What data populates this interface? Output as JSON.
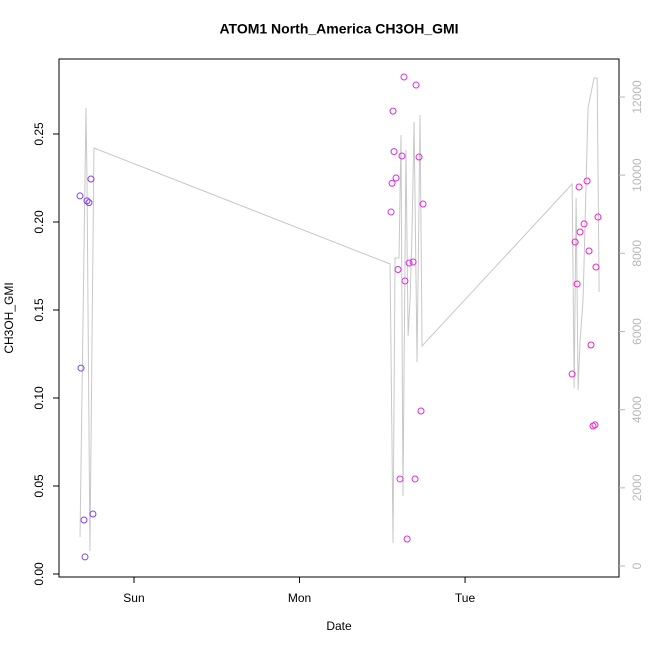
{
  "chart_data": {
    "type": "scatter",
    "title": "ATOM1 North_America CH3OH_GMI",
    "xlabel": "Date",
    "ylabel": "CH3OH_GMI",
    "xlim": [
      -0.453,
      2.93
    ],
    "ylim": [
      -0.0017,
      0.2926
    ],
    "y2lim": [
      -281,
      12972
    ],
    "xticks": [
      {
        "value": 0,
        "label": "Sun"
      },
      {
        "value": 1,
        "label": "Mon"
      },
      {
        "value": 2,
        "label": "Tue"
      }
    ],
    "yticks": [
      {
        "value": 0,
        "label": "0.00"
      },
      {
        "value": 0.05,
        "label": "0.05"
      },
      {
        "value": 0.1,
        "label": "0.10"
      },
      {
        "value": 0.15,
        "label": "0.15"
      },
      {
        "value": 0.2,
        "label": "0.20"
      },
      {
        "value": 0.25,
        "label": "0.25"
      }
    ],
    "y2ticks": [
      0,
      2000,
      4000,
      6000,
      8000,
      10000,
      12000
    ],
    "series": [
      {
        "type": "scatter",
        "x": [
          -0.326,
          -0.32,
          -0.302,
          -0.296,
          -0.284,
          -0.272,
          -0.26,
          -0.248,
          1.553,
          1.565,
          1.559,
          1.571,
          1.583,
          1.595,
          1.607,
          1.619,
          1.631,
          1.637,
          1.65,
          1.662,
          1.686,
          1.698,
          1.704,
          1.722,
          1.734,
          1.746,
          2.647,
          2.665,
          2.677,
          2.689,
          2.695,
          2.719,
          2.737,
          2.749,
          2.761,
          2.773,
          2.785,
          2.791,
          2.803
        ],
        "values": [
          0.2148,
          0.117,
          0.0307,
          0.0097,
          0.212,
          0.211,
          0.2244,
          0.0341,
          0.2057,
          0.263,
          0.222,
          0.24,
          0.225,
          0.173,
          0.054,
          0.2375,
          0.2824,
          0.1665,
          0.0199,
          0.1767,
          0.1773,
          0.054,
          0.2778,
          0.2369,
          0.0926,
          0.2102,
          0.1136,
          0.1886,
          0.1648,
          0.2199,
          0.1943,
          0.1989,
          0.2233,
          0.1835,
          0.1301,
          0.0841,
          0.0847,
          0.1744,
          0.2028
        ],
        "colors": [
          "#7a3ff0",
          "#7a3ff0",
          "#7f3ef0",
          "#803ef0",
          "#833df0",
          "#853df0",
          "#883cf0",
          "#8a3cf0",
          "#d22ee8",
          "#d22ee8",
          "#d22ee8",
          "#d42ee6",
          "#d42ee6",
          "#d52de6",
          "#d62de6",
          "#d72de5",
          "#d82ce5",
          "#d82ce5",
          "#d92ce4",
          "#da2ce4",
          "#db2be4",
          "#dc2be3",
          "#dc2be3",
          "#dd2be3",
          "#de2ae2",
          "#de2ae2",
          "#f020c8",
          "#f020c8",
          "#f020c8",
          "#f11fc6",
          "#f11fc6",
          "#f21fc5",
          "#f21fc5",
          "#f31ec4",
          "#f31ec4",
          "#f41ec3",
          "#f41ec3",
          "#f41ec3",
          "#f51dc2"
        ]
      },
      {
        "type": "line",
        "axis": "y2",
        "color": "#c8c8c8",
        "x": [
          -0.326,
          -0.29,
          -0.284,
          -0.266,
          -0.242,
          1.547,
          1.565,
          1.577,
          1.601,
          1.613,
          1.625,
          1.643,
          1.656,
          1.668,
          1.68,
          1.692,
          1.71,
          1.722,
          1.728,
          1.74,
          2.647,
          2.659,
          2.671,
          2.683,
          2.695,
          2.713,
          2.743,
          2.779,
          2.798,
          2.81
        ],
        "values": [
          742,
          11718,
          9927,
          384,
          10695,
          7727,
          588,
          7880,
          7880,
          11027,
          1791,
          10644,
          5885,
          6806,
          8597,
          11360,
          5220,
          9365,
          11539,
          5629,
          9774,
          4554,
          9416,
          4503,
          5782,
          6806,
          11718,
          12486,
          12486,
          7010
        ]
      }
    ]
  }
}
